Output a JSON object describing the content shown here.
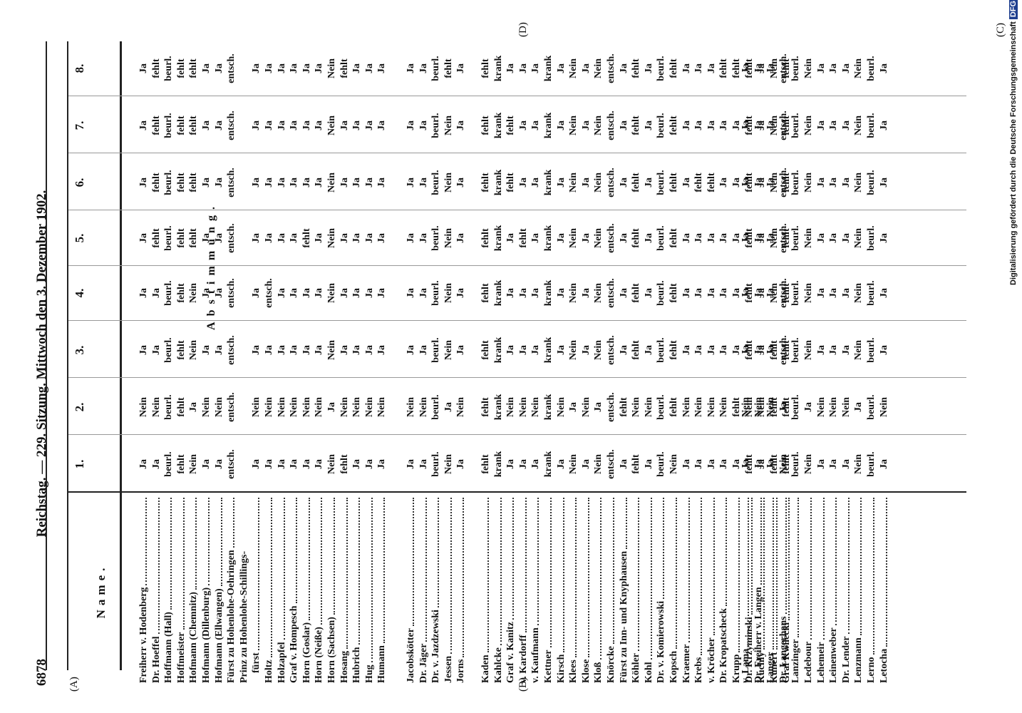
{
  "header": {
    "page_number": "6878",
    "title": "Reichstag. — 229. Sitzung. Mittwoch den 3. Dezember 1902."
  },
  "margin_marks": {
    "a": "(A)",
    "b": "(B)",
    "c": "(C)",
    "d": "(D)"
  },
  "credit": {
    "text": "Digitalisierung gefördert durch die Deutsche Forschungsgemeinschaft",
    "logo": "DFG"
  },
  "table": {
    "name_header": "Name.",
    "vote_header": "Abstimmung.",
    "columns": [
      "1.",
      "2.",
      "3.",
      "4.",
      "5.",
      "6.",
      "7.",
      "8."
    ],
    "groups": [
      {
        "rows": [
          {
            "name": "Freiherr v. Hodenberg",
            "votes": [
              "Ja",
              "Nein",
              "Ja",
              "Ja",
              "Ja",
              "Ja",
              "Ja",
              "Ja"
            ]
          },
          {
            "name": "Dr. Hoeffel",
            "votes": [
              "Ja",
              "Nein",
              "Ja",
              "Ja",
              "fehlt",
              "fehlt",
              "fehlt",
              "fehlt"
            ]
          },
          {
            "name": "Hoffmann (Hall)",
            "votes": [
              "beurl.",
              "beurl.",
              "beurl.",
              "beurl.",
              "beurl.",
              "beurl.",
              "beurl.",
              "beurl."
            ]
          },
          {
            "name": "Hoffmeister",
            "votes": [
              "fehlt",
              "fehlt",
              "fehlt",
              "fehlt",
              "fehlt",
              "fehlt",
              "fehlt",
              "fehlt"
            ]
          },
          {
            "name": "Hofmann (Chemnitz)",
            "votes": [
              "Nein",
              "Ja",
              "Nein",
              "Nein",
              "fehlt",
              "fehlt",
              "fehlt",
              "fehlt"
            ]
          },
          {
            "name": "Hofmann (Dillenburg)",
            "votes": [
              "Ja",
              "Nein",
              "Ja",
              "Ja",
              "Ja",
              "Ja",
              "Ja",
              "Ja"
            ]
          },
          {
            "name": "Hofmann (Ellwangen)",
            "votes": [
              "Ja",
              "Nein",
              "Ja",
              "Ja",
              "Ja",
              "Ja",
              "Ja",
              "Ja"
            ]
          },
          {
            "name": "Fürst zu Hohenlohe-Oehringen",
            "votes": [
              "entsch.",
              "entsch.",
              "entsch.",
              "entsch.",
              "entsch.",
              "entsch.",
              "entsch.",
              "entsch."
            ]
          },
          {
            "name": "Prinz zu Hohenlohe-Schillings-",
            "name2": "fürst",
            "votes": [
              "Ja",
              "Nein",
              "Ja",
              "Ja",
              "Ja",
              "Ja",
              "Ja",
              "Ja"
            ]
          },
          {
            "name": "Holtz",
            "votes": [
              "Ja",
              "Nein",
              "Ja",
              "entsch.",
              "Ja",
              "Ja",
              "Ja",
              "Ja"
            ]
          },
          {
            "name": "Holzapfel",
            "votes": [
              "Ja",
              "Nein",
              "Ja",
              "Ja",
              "Ja",
              "Ja",
              "Ja",
              "Ja"
            ]
          },
          {
            "name": "Graf v. Hompesch",
            "votes": [
              "Ja",
              "Nein",
              "Ja",
              "Ja",
              "Ja",
              "Ja",
              "Ja",
              "Ja"
            ]
          },
          {
            "name": "Horn (Goslar)",
            "votes": [
              "Ja",
              "Nein",
              "Ja",
              "Ja",
              "fehlt",
              "Ja",
              "Ja",
              "Ja"
            ]
          },
          {
            "name": "Horn (Neiße)",
            "votes": [
              "Ja",
              "Nein",
              "Ja",
              "Ja",
              "Ja",
              "Ja",
              "Ja",
              "Ja"
            ]
          },
          {
            "name": "Horn (Sachsen)",
            "votes": [
              "Nein",
              "Ja",
              "Nein",
              "Nein",
              "Nein",
              "Nein",
              "Nein",
              "Nein"
            ]
          },
          {
            "name": "Hosang",
            "votes": [
              "fehlt",
              "Nein",
              "Ja",
              "Ja",
              "Ja",
              "Ja",
              "Ja",
              "fehlt"
            ]
          },
          {
            "name": "Hubrich",
            "votes": [
              "Ja",
              "Nein",
              "Ja",
              "Ja",
              "Ja",
              "Ja",
              "Ja",
              "Ja"
            ]
          },
          {
            "name": "Hug",
            "votes": [
              "Ja",
              "Nein",
              "Ja",
              "Ja",
              "Ja",
              "Ja",
              "Ja",
              "Ja"
            ]
          },
          {
            "name": "Humann",
            "votes": [
              "Ja",
              "Nein",
              "Ja",
              "Ja",
              "Ja",
              "Ja",
              "Ja",
              "Ja"
            ]
          }
        ]
      },
      {
        "rows": [
          {
            "name": "Jacobskötter",
            "votes": [
              "Ja",
              "Nein",
              "Ja",
              "Ja",
              "Ja",
              "Ja",
              "Ja",
              "Ja"
            ]
          },
          {
            "name": "Dr. Jäger",
            "votes": [
              "Ja",
              "Nein",
              "Ja",
              "Ja",
              "Ja",
              "Ja",
              "Ja",
              "Ja"
            ]
          },
          {
            "name": "Dr. v. Jazdzewski",
            "votes": [
              "beurl.",
              "beurl.",
              "beurl.",
              "beurl.",
              "beurl.",
              "beurl.",
              "beurl.",
              "beurl."
            ]
          },
          {
            "name": "Jessen",
            "votes": [
              "Nein",
              "Ja",
              "Nein",
              "Nein",
              "Nein",
              "Nein",
              "Nein",
              "fehlt"
            ]
          },
          {
            "name": "Jorns",
            "votes": [
              "Ja",
              "Nein",
              "Ja",
              "Ja",
              "Ja",
              "Ja",
              "Ja",
              "Ja"
            ]
          }
        ]
      },
      {
        "rows": [
          {
            "name": "Kaden",
            "votes": [
              "fehlt",
              "fehlt",
              "fehlt",
              "fehlt",
              "fehlt",
              "fehlt",
              "fehlt",
              "fehlt"
            ]
          },
          {
            "name": "Kahlcke",
            "votes": [
              "krank",
              "krank",
              "krank",
              "krank",
              "krank",
              "krank",
              "krank",
              "krank"
            ]
          },
          {
            "name": "Graf v. Kanitz",
            "votes": [
              "Ja",
              "Nein",
              "Ja",
              "Ja",
              "Ja",
              "fehlt",
              "fehlt",
              "Ja"
            ]
          },
          {
            "name": "v. Kardorff",
            "votes": [
              "Ja",
              "Nein",
              "Ja",
              "Ja",
              "fehlt",
              "Ja",
              "Ja",
              "Ja"
            ]
          },
          {
            "name": "v. Kaufmann",
            "votes": [
              "Ja",
              "Nein",
              "Ja",
              "Ja",
              "Ja",
              "Ja",
              "Ja",
              "Ja"
            ]
          },
          {
            "name": "Kettner",
            "votes": [
              "krank",
              "krank",
              "krank",
              "krank",
              "krank",
              "krank",
              "krank",
              "krank"
            ]
          },
          {
            "name": "Kirsch",
            "votes": [
              "Ja",
              "Nein",
              "Ja",
              "Ja",
              "Ja",
              "Ja",
              "Ja",
              "Ja"
            ]
          },
          {
            "name": "Klees",
            "votes": [
              "Nein",
              "Ja",
              "Nein",
              "Nein",
              "Nein",
              "Nein",
              "Nein",
              "Nein"
            ]
          },
          {
            "name": "Klose",
            "votes": [
              "Ja",
              "Nein",
              "Ja",
              "Ja",
              "Ja",
              "Ja",
              "Ja",
              "Ja"
            ]
          },
          {
            "name": "Kloß",
            "votes": [
              "Nein",
              "Ja",
              "Nein",
              "Nein",
              "Nein",
              "Nein",
              "Nein",
              "Nein"
            ]
          },
          {
            "name": "Knörcke",
            "votes": [
              "entsch.",
              "entsch.",
              "entsch.",
              "entsch.",
              "entsch.",
              "entsch.",
              "entsch.",
              "entsch."
            ]
          },
          {
            "name": "Fürst zu Inn- und Knyphausen",
            "votes": [
              "Ja",
              "fehlt",
              "Ja",
              "Ja",
              "Ja",
              "Ja",
              "Ja",
              "Ja"
            ]
          },
          {
            "name": "Köhler",
            "votes": [
              "fehlt",
              "Nein",
              "fehlt",
              "fehlt",
              "fehlt",
              "fehlt",
              "fehlt",
              "fehlt"
            ]
          },
          {
            "name": "Kohl",
            "votes": [
              "Ja",
              "Nein",
              "Ja",
              "Ja",
              "Ja",
              "Ja",
              "Ja",
              "Ja"
            ]
          },
          {
            "name": "Dr. v. Komierowski",
            "votes": [
              "beurl.",
              "beurl.",
              "beurl.",
              "beurl.",
              "beurl.",
              "beurl.",
              "beurl.",
              "beurl."
            ]
          },
          {
            "name": "Kopsch",
            "votes": [
              "Nein",
              "fehlt",
              "fehlt",
              "fehlt",
              "fehlt",
              "fehlt",
              "fehlt",
              "fehlt"
            ]
          },
          {
            "name": "Kraemer",
            "votes": [
              "Ja",
              "Nein",
              "Ja",
              "Ja",
              "Ja",
              "Ja",
              "Ja",
              "Ja"
            ]
          },
          {
            "name": "Krebs",
            "votes": [
              "Ja",
              "Nein",
              "Ja",
              "Ja",
              "Ja",
              "fehlt",
              "Ja",
              "Ja"
            ]
          },
          {
            "name": "v. Kröcher",
            "votes": [
              "Ja",
              "Nein",
              "Ja",
              "Ja",
              "Ja",
              "fehlt",
              "Ja",
              "Ja"
            ]
          },
          {
            "name": "Dr. Kropatscheck",
            "votes": [
              "Ja",
              "Nein",
              "Ja",
              "Ja",
              "Ja",
              "Ja",
              "Ja",
              "fehlt"
            ]
          },
          {
            "name": "Krupp",
            "votes": [
              "Ja",
              "fehlt",
              "Ja",
              "Ja",
              "Ja",
              "Ja",
              "Ja",
              "fehlt"
            ]
          },
          {
            "name": "Dr. Krzyminski",
            "votes": [
              "fehlt",
              "Nein",
              "fehlt",
              "fehlt",
              "fehlt",
              "fehlt",
              "fehlt",
              "fehlt"
            ]
          },
          {
            "name": "Kuchly",
            "votes": [
              "Ja",
              "Nein",
              "Ja",
              "Ja",
              "Ja",
              "Ja",
              "Ja",
              "Ja"
            ]
          },
          {
            "name": "Kunert",
            "votes": [
              "fehlt",
              "fehlt",
              "fehlt",
              "Nein",
              "Nein",
              "Nein",
              "Nein",
              "Nein"
            ]
          },
          {
            "name": "Graf Kwilecki",
            "votes": [
              "fehlt",
              "fehlt",
              "fehlt",
              "fehlt",
              "fehlt",
              "fehlt",
              "fehlt",
              "fehlt"
            ]
          }
        ]
      },
      {
        "rows": [
          {
            "name": "v. Lama",
            "votes": [
              "Ja",
              "Nein",
              "Ja",
              "Ja",
              "Ja",
              "Ja",
              "Ja",
              "Ja"
            ]
          },
          {
            "name": "Dr. Freiherr v. Langen",
            "votes": [
              "Ja",
              "Nein",
              "Ja",
              "Ja",
              "Ja",
              "Ja",
              "Ja",
              "Ja"
            ]
          },
          {
            "name": "Langer",
            "votes": [
              "Ja",
              "Nein",
              "Ja",
              "Ja",
              "Ja",
              "Ja",
              "Ja",
              "Ja"
            ]
          },
          {
            "name": "Dr. Langerhans",
            "votes": [
              "Nein",
              "Ja",
              "entsch.",
              "entsch.",
              "entsch.",
              "entsch.",
              "entsch.",
              "entsch."
            ]
          },
          {
            "name": "Lanzinger",
            "votes": [
              "beurl.",
              "beurl.",
              "beurl.",
              "beurl.",
              "beurl.",
              "beurl.",
              "beurl.",
              "beurl."
            ]
          },
          {
            "name": "Ledebour",
            "votes": [
              "Nein",
              "Ja",
              "Nein",
              "Nein",
              "Nein",
              "Nein",
              "Nein",
              "Nein"
            ]
          },
          {
            "name": "Lehemeir",
            "votes": [
              "Ja",
              "Nein",
              "Ja",
              "Ja",
              "Ja",
              "Ja",
              "Ja",
              "Ja"
            ]
          },
          {
            "name": "Leinenweber",
            "votes": [
              "Ja",
              "Nein",
              "Ja",
              "Ja",
              "Ja",
              "Ja",
              "Ja",
              "Ja"
            ]
          },
          {
            "name": "Dr. Lender",
            "votes": [
              "Ja",
              "Nein",
              "Ja",
              "Ja",
              "Ja",
              "Ja",
              "Ja",
              "Ja"
            ]
          },
          {
            "name": "Lenzmann",
            "votes": [
              "Nein",
              "Ja",
              "Nein",
              "Nein",
              "Nein",
              "Nein",
              "Nein",
              "Nein"
            ]
          },
          {
            "name": "Lerno",
            "votes": [
              "beurl.",
              "beurl.",
              "beurl.",
              "beurl.",
              "beurl.",
              "beurl.",
              "beurl.",
              "beurl."
            ]
          },
          {
            "name": "Letocha",
            "votes": [
              "Ja",
              "Nein",
              "Ja",
              "Ja",
              "Ja",
              "Ja",
              "Ja",
              "Ja"
            ]
          }
        ]
      }
    ]
  }
}
